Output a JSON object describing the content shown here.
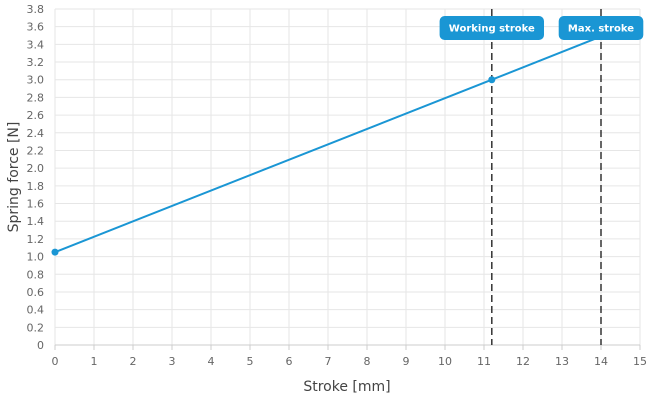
{
  "chart_data": {
    "type": "line",
    "xlabel": "Stroke [mm]",
    "ylabel": "Spring force [N]",
    "xlim": [
      0,
      15
    ],
    "ylim": [
      0,
      3.8
    ],
    "x_ticks": [
      "0",
      "1",
      "2",
      "3",
      "4",
      "5",
      "6",
      "7",
      "8",
      "9",
      "10",
      "11",
      "12",
      "13",
      "14",
      "15"
    ],
    "y_ticks": [
      "0",
      "0.2",
      "0.4",
      "0.6",
      "0.8",
      "1.0",
      "1.2",
      "1.4",
      "1.6",
      "1.8",
      "2.0",
      "2.2",
      "2.4",
      "2.6",
      "2.8",
      "3.0",
      "3.2",
      "3.4",
      "3.6",
      "3.8"
    ],
    "grid": true,
    "series": [
      {
        "color": "#1a96d4",
        "points": [
          {
            "x": 0,
            "y": 1.05
          },
          {
            "x": 11.2,
            "y": 3.0
          },
          {
            "x": 14,
            "y": 3.49
          }
        ]
      }
    ],
    "markers": [
      {
        "label": "Working stroke",
        "x": 11.2,
        "y": 3.0,
        "show_point": true
      },
      {
        "label": "Max. stroke",
        "x": 14,
        "y": 3.49,
        "show_point": false
      }
    ],
    "colors": {
      "line": "#1a96d4",
      "marker_bg": "#1a96d4",
      "grid": "#e6e6e6",
      "dashed": "#333333"
    }
  }
}
